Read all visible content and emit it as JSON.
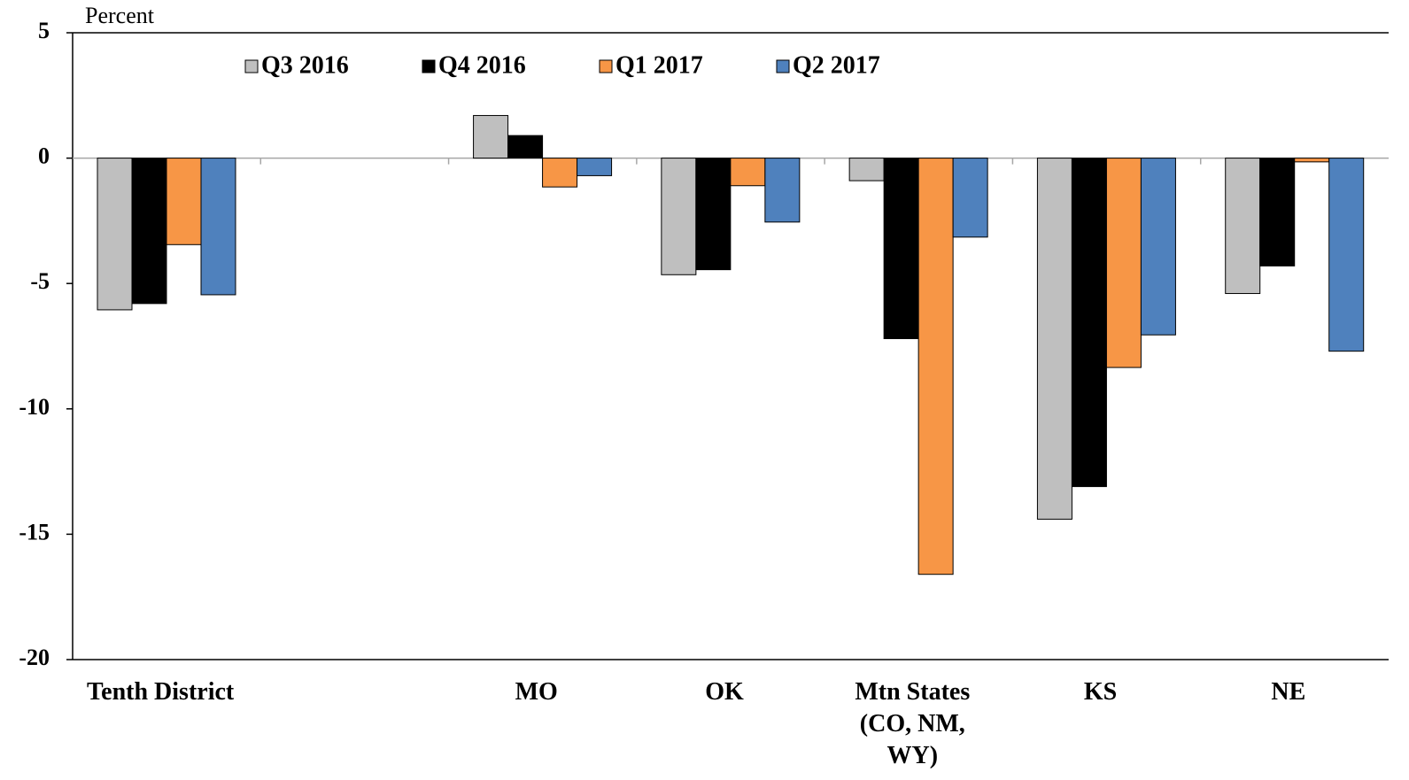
{
  "chart_data": {
    "type": "bar",
    "y_axis_label": "Percent",
    "categories": [
      "Tenth District",
      null,
      "MO",
      "OK",
      "Mtn States (CO, NM, WY)",
      "KS",
      "NE"
    ],
    "series": [
      {
        "name": "Q3 2016",
        "color": "#bfbfbf",
        "values": [
          -6.05,
          null,
          1.7,
          -4.65,
          -0.9,
          -14.4,
          -5.4
        ]
      },
      {
        "name": "Q4 2016",
        "color": "#000000",
        "values": [
          -5.8,
          null,
          0.9,
          -4.45,
          -7.2,
          -13.1,
          -4.3
        ]
      },
      {
        "name": "Q1 2017",
        "color": "#f79646",
        "values": [
          -3.45,
          null,
          -1.15,
          -1.1,
          -16.6,
          -8.35,
          -0.15
        ]
      },
      {
        "name": "Q2 2017",
        "color": "#4f81bd",
        "values": [
          -5.45,
          null,
          -0.7,
          -2.55,
          -3.15,
          -7.05,
          -7.7
        ]
      }
    ],
    "ylim": [
      -20,
      5
    ],
    "yticks": [
      5,
      0,
      -5,
      -10,
      -15,
      -20
    ],
    "legend": "top-left"
  }
}
